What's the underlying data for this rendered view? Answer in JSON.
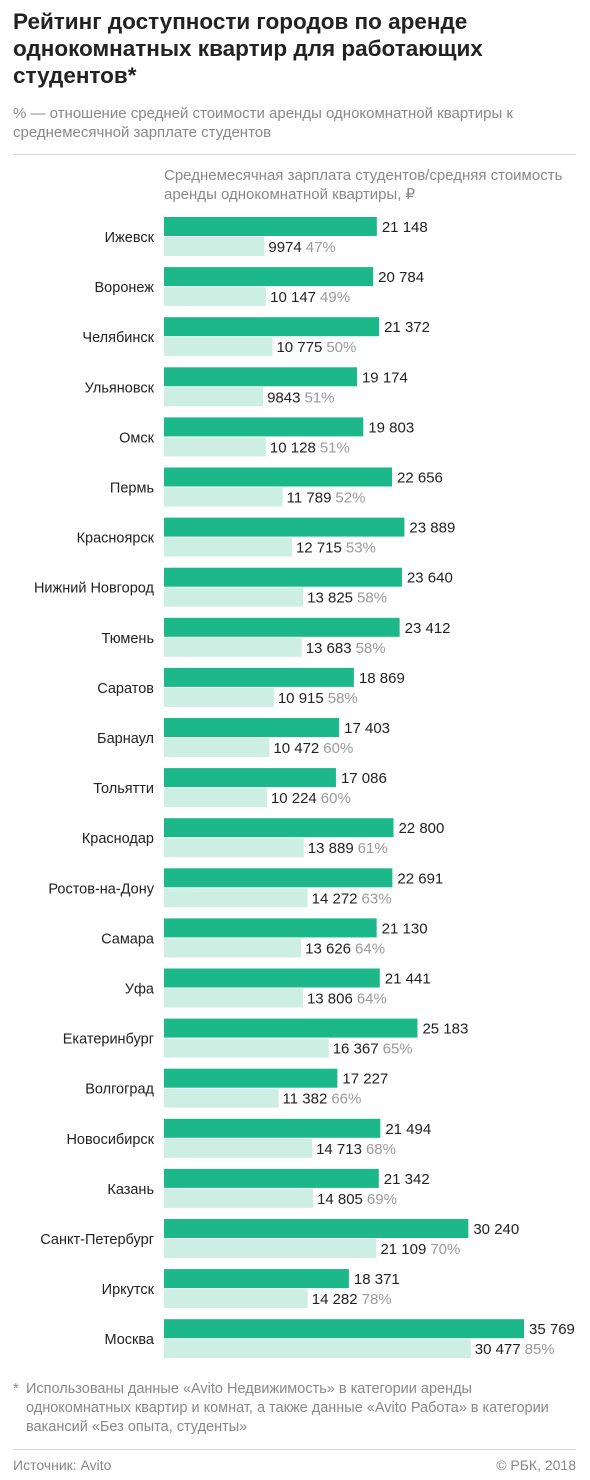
{
  "header": {
    "title": "Рейтинг доступности городов по аренде однокомнатных квартир для работающих студентов*",
    "subtitle": "% — отношение средней стоимости аренды однокомнатной квартиры к среднемесячной зарплате студентов"
  },
  "legend_text": "Среднемесячная зарплата студентов/средняя стоимость аренды однокомнатной квартиры, ₽",
  "footnote": {
    "mark": "*",
    "text": "Использованы данные «Avito Недвижимость» в категории аренды однокомнатных квартир и комнат, а также данные «Avito Работа» в категории вакансий «Без опыта, студенты»"
  },
  "footer": {
    "source": "Источник: Avito",
    "copyright": "© РБК, 2018"
  },
  "colors": {
    "salary": "#1cb889",
    "rent": "#cdefe3",
    "percent": "#9a9a9a",
    "text": "#222222"
  },
  "chart_data": {
    "type": "bar",
    "orientation": "horizontal",
    "grid": false,
    "categories": [
      "Ижевск",
      "Воронеж",
      "Челябинск",
      "Ульяновск",
      "Омск",
      "Пермь",
      "Красноярск",
      "Нижний Новгород",
      "Тюмень",
      "Саратов",
      "Барнаул",
      "Тольятти",
      "Краснодар",
      "Ростов-на-Дону",
      "Самара",
      "Уфа",
      "Екатеринбург",
      "Волгоград",
      "Новосибирск",
      "Казань",
      "Санкт-Петербург",
      "Иркутск",
      "Москва"
    ],
    "salary": [
      21148,
      20784,
      21372,
      19174,
      19803,
      22656,
      23889,
      23640,
      23412,
      18869,
      17403,
      17086,
      22800,
      22691,
      21130,
      21441,
      25183,
      17227,
      21494,
      21342,
      30240,
      18371,
      35769
    ],
    "salary_labels": [
      "21 148",
      "20 784",
      "21 372",
      "19 174",
      "19 803",
      "22 656",
      "23 889",
      "23 640",
      "23 412",
      "18 869",
      "17 403",
      "17 086",
      "22 800",
      "22 691",
      "21 130",
      "21 441",
      "25 183",
      "17 227",
      "21 494",
      "21 342",
      "30 240",
      "18 371",
      "35 769"
    ],
    "rent": [
      9974,
      10147,
      10775,
      9843,
      10128,
      11789,
      12715,
      13825,
      13683,
      10915,
      10472,
      10224,
      13889,
      14272,
      13626,
      13806,
      16367,
      11382,
      14713,
      14805,
      21109,
      14282,
      30477
    ],
    "rent_labels": [
      "9974",
      "10 147",
      "10 775",
      "9843",
      "10 128",
      "11 789",
      "12 715",
      "13 825",
      "13 683",
      "10 915",
      "10 472",
      "10 224",
      "13 889",
      "14 272",
      "13 626",
      "13 806",
      "16 367",
      "11 382",
      "14 713",
      "14 805",
      "21 109",
      "14 282",
      "30 477"
    ],
    "percent": [
      47,
      49,
      50,
      51,
      51,
      52,
      53,
      58,
      58,
      58,
      60,
      60,
      61,
      63,
      64,
      64,
      65,
      66,
      68,
      69,
      70,
      78,
      85
    ],
    "percent_labels": [
      "47%",
      "49%",
      "50%",
      "51%",
      "51%",
      "52%",
      "53%",
      "58%",
      "58%",
      "58%",
      "60%",
      "60%",
      "61%",
      "63%",
      "64%",
      "64%",
      "65%",
      "66%",
      "68%",
      "69%",
      "70%",
      "78%",
      "85%"
    ]
  }
}
